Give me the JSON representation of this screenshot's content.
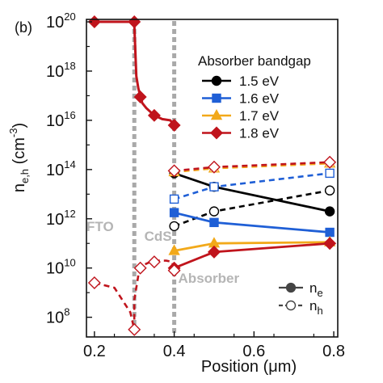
{
  "chart_data": {
    "type": "line",
    "panel_label": "(b)",
    "xlabel": "Position (μm)",
    "ylabel_base": "n",
    "ylabel_sub": "e,h",
    "ylabel_unit_open": " (cm",
    "ylabel_unit_exp": "-3",
    "ylabel_unit_close": ")",
    "xlim": [
      0.18,
      0.81
    ],
    "ylim_log10": [
      7.2,
      20.1
    ],
    "y_scale": "log",
    "x_ticks": [
      0.2,
      0.4,
      0.6,
      0.8
    ],
    "x_tick_labels": [
      "0.2",
      "0.4",
      "0.6",
      "0.8"
    ],
    "y_ticks_exp": [
      8,
      10,
      12,
      14,
      16,
      18,
      20
    ],
    "y_tick_base": "10",
    "y_tick_exps": [
      "8",
      "10",
      "12",
      "14",
      "16",
      "18",
      "20"
    ],
    "grid": false,
    "interfaces_x": [
      0.3,
      0.4
    ],
    "region_labels": [
      {
        "text": "FTO",
        "x": 0.18,
        "y": 11.5
      },
      {
        "text": "CdS",
        "x": 0.325,
        "y": 11.1
      },
      {
        "text": "Absorber",
        "x": 0.41,
        "y": 9.4
      }
    ],
    "legend": {
      "title": "Absorber bandgap",
      "placement": "top-right",
      "entries": [
        {
          "label": "1.5 eV",
          "color": "#000000",
          "marker": "circle"
        },
        {
          "label": "1.6 eV",
          "color": "#1f5fd6",
          "marker": "square"
        },
        {
          "label": "1.7 eV",
          "color": "#f2a91a",
          "marker": "triangle"
        },
        {
          "label": "1.8 eV",
          "color": "#c0141c",
          "marker": "diamond"
        }
      ]
    },
    "style_legend": {
      "placement": "bottom-right",
      "entries": [
        {
          "base": "n",
          "sub": "e",
          "style": "solid-filled"
        },
        {
          "base": "n",
          "sub": "h",
          "style": "dashed-open"
        }
      ]
    },
    "shared_front": {
      "electrons": {
        "x": [
          0.2,
          0.3,
          0.3,
          0.305,
          0.31,
          0.315,
          0.32,
          0.33,
          0.35,
          0.37,
          0.39,
          0.4
        ],
        "log10": [
          20,
          20,
          19.9,
          17.8,
          17.3,
          17.0,
          16.7,
          16.5,
          16.2,
          16.05,
          16.0,
          15.8
        ]
      },
      "holes": {
        "x": [
          0.2,
          0.25,
          0.29,
          0.3,
          0.3,
          0.305,
          0.31,
          0.32,
          0.34,
          0.36,
          0.38,
          0.395,
          0.4
        ],
        "log10": [
          9.4,
          9.2,
          8.2,
          7.5,
          8.7,
          9.2,
          9.7,
          10.1,
          10.25,
          10.3,
          10.3,
          10.25,
          9.9
        ]
      }
    },
    "series": [
      {
        "name": "1.5 eV",
        "color": "#000000",
        "marker": "circle",
        "electrons": {
          "x": [
            0.4,
            0.5,
            0.79
          ],
          "log10": [
            13.85,
            13.3,
            12.3
          ]
        },
        "holes": {
          "x": [
            0.4,
            0.5,
            0.79
          ],
          "log10": [
            11.7,
            12.3,
            13.15
          ]
        }
      },
      {
        "name": "1.6 eV",
        "color": "#1f5fd6",
        "marker": "square",
        "electrons": {
          "x": [
            0.4,
            0.5,
            0.79
          ],
          "log10": [
            12.25,
            11.85,
            11.45
          ]
        },
        "holes": {
          "x": [
            0.4,
            0.5,
            0.79
          ],
          "log10": [
            12.8,
            13.3,
            13.85
          ]
        }
      },
      {
        "name": "1.7 eV",
        "color": "#f2a91a",
        "marker": "triangle",
        "electrons": {
          "x": [
            0.4,
            0.5,
            0.79
          ],
          "log10": [
            10.7,
            11.0,
            11.05
          ]
        },
        "holes": {
          "x": [
            0.4,
            0.5,
            0.79
          ],
          "log10": [
            13.9,
            14.05,
            14.25
          ]
        }
      },
      {
        "name": "1.8 eV",
        "color": "#c0141c",
        "marker": "diamond",
        "electrons": {
          "x": [
            0.4,
            0.5,
            0.79
          ],
          "log10": [
            10.0,
            10.65,
            11.0
          ]
        },
        "holes": {
          "x": [
            0.4,
            0.5,
            0.79
          ],
          "log10": [
            13.95,
            14.1,
            14.3
          ]
        }
      }
    ],
    "marker_points": {
      "front_electrons": {
        "x": [
          0.2,
          0.3,
          0.315,
          0.35,
          0.4
        ],
        "log10": [
          20,
          20,
          16.95,
          16.2,
          15.8
        ]
      },
      "front_holes": {
        "x": [
          0.2,
          0.3,
          0.315,
          0.35,
          0.4
        ],
        "log10": [
          9.4,
          7.5,
          10.0,
          10.25,
          9.9
        ]
      }
    }
  }
}
